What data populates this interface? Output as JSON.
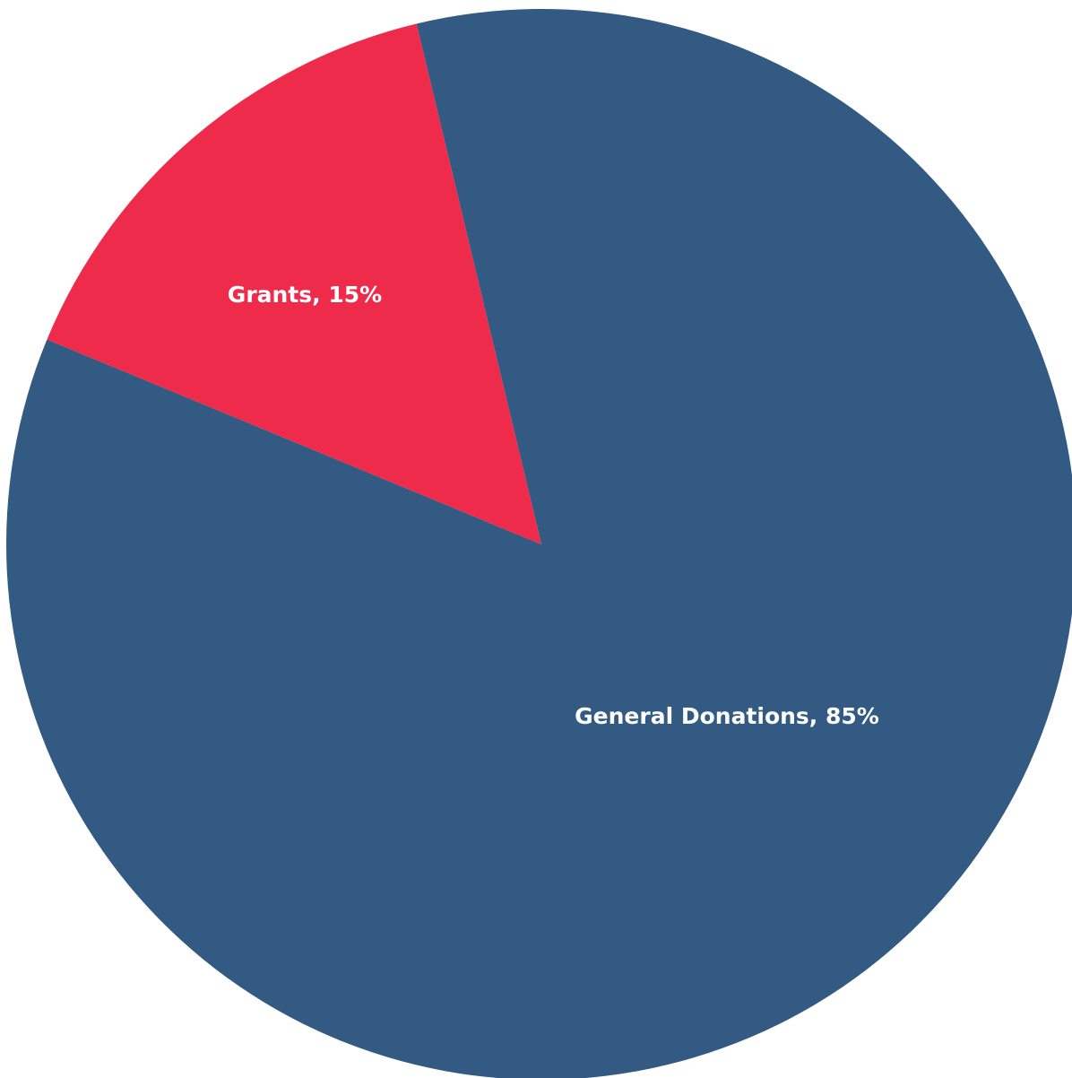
{
  "chart_data": {
    "type": "pie",
    "title": "",
    "slices": [
      {
        "label": "General Donations",
        "value": 85,
        "display_label": "General Donations, 85%",
        "color": "#325a82"
      },
      {
        "label": "Grants",
        "value": 15,
        "display_label": "Grants, 15%",
        "color": "#ee2b4a"
      }
    ]
  }
}
